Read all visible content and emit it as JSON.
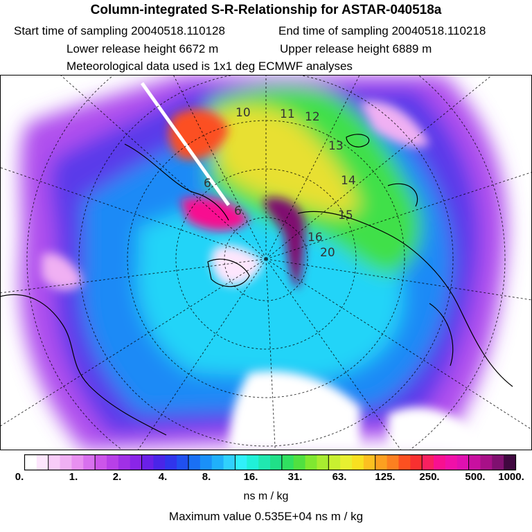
{
  "header": {
    "title": "Column-integrated S-R-Relationship for ASTAR-040518a",
    "start": "Start time of sampling 20040518.110128",
    "end": "End time of sampling 20040518.110218",
    "lower": "Lower release height 6672 m",
    "upper": "Upper release height 6889 m",
    "met": "Meteorological data used is 1x1 deg ECMWF analyses"
  },
  "map": {
    "trajectory_labels": [
      "10",
      "11",
      "12",
      "13",
      "14",
      "15",
      "16",
      "20",
      "6",
      "6"
    ]
  },
  "colorbar": {
    "tick_labels": [
      "0.",
      "1.",
      "2.",
      "4.",
      "8.",
      "16.",
      "31.",
      "63.",
      "125.",
      "250.",
      "500.",
      "1000."
    ],
    "colors": [
      "#ffffff",
      "#fde6fd",
      "#f8ccf8",
      "#f0b0f3",
      "#e890f0",
      "#d870ee",
      "#cc55ea",
      "#b840e8",
      "#a030e6",
      "#8a25e8",
      "#6a20e8",
      "#4a25e8",
      "#3035ec",
      "#2050f0",
      "#1a70f5",
      "#1a90f8",
      "#20b0fa",
      "#30d0fc",
      "#30f0fa",
      "#20f0d8",
      "#20e8b0",
      "#20e088",
      "#30e060",
      "#50e040",
      "#80e830",
      "#a8ec30",
      "#c8f030",
      "#e8f030",
      "#f8e020",
      "#fcc020",
      "#fca020",
      "#fc8020",
      "#fc5020",
      "#f83030",
      "#f82060",
      "#f81090",
      "#f010a8",
      "#e010b0",
      "#c810a0",
      "#a81088",
      "#801070",
      "#400840"
    ],
    "unit": "ns m / kg",
    "max_value": "Maximum value  0.535E+04 ns m / kg"
  }
}
